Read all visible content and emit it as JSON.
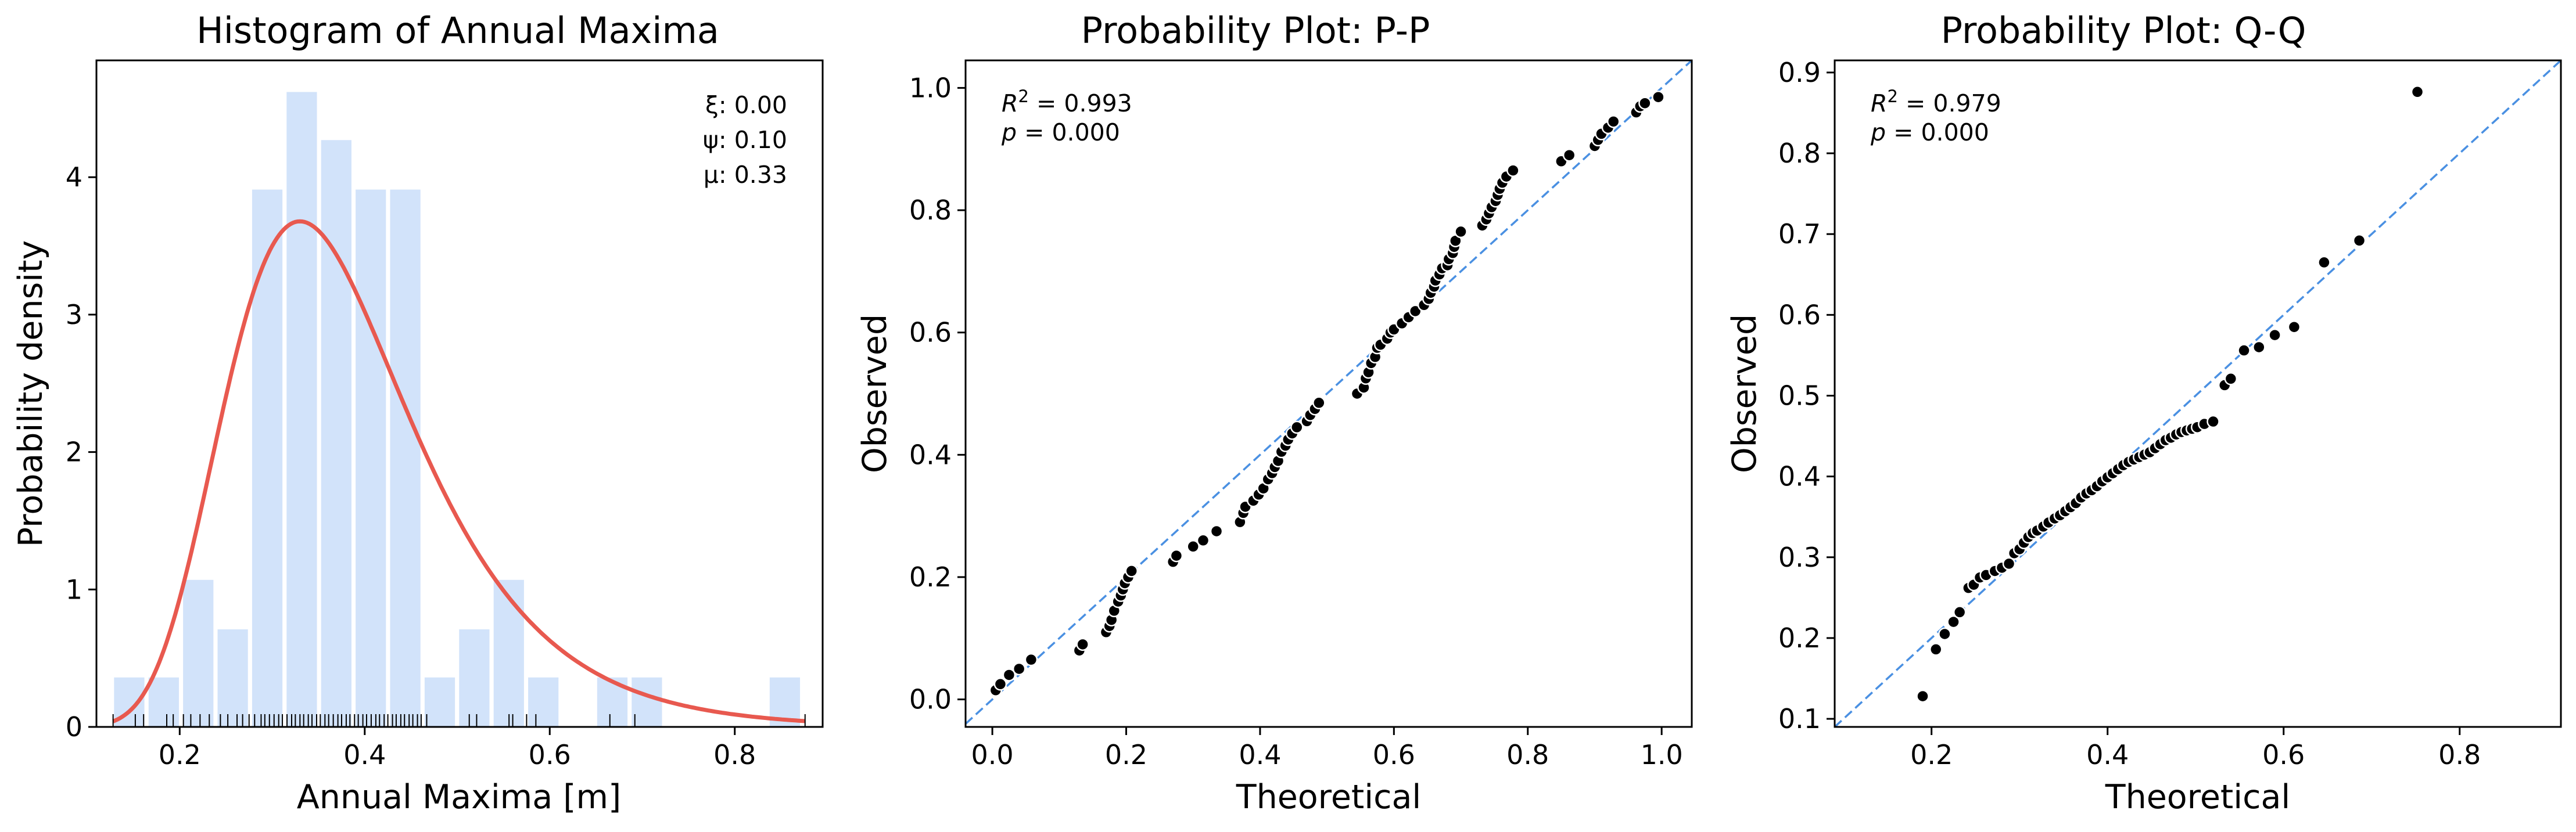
{
  "chart_data": [
    {
      "id": "hist",
      "type": "bar",
      "title": "Histogram of Annual Maxima",
      "xlabel": "Annual Maxima [m]",
      "ylabel": "Probability density",
      "xlim": [
        0.11,
        0.895
      ],
      "ylim": [
        0,
        4.85
      ],
      "xticks": [
        0.2,
        0.4,
        0.6,
        0.8
      ],
      "xtick_labels": [
        "0.2",
        "0.4",
        "0.6",
        "0.8"
      ],
      "yticks": [
        0,
        1,
        2,
        3,
        4
      ],
      "ytick_labels": [
        "0",
        "1",
        "2",
        "3",
        "4"
      ],
      "bin_width": 0.0373,
      "bin_starts": [
        0.1268,
        0.1641,
        0.2014,
        0.2387,
        0.276,
        0.3133,
        0.3506,
        0.3879,
        0.4252,
        0.4625,
        0.4998,
        0.5371,
        0.5744,
        0.6117,
        0.649,
        0.6863,
        0.7236,
        0.7609,
        0.7982,
        0.8355
      ],
      "values": [
        0.36,
        0.36,
        1.07,
        0.71,
        3.91,
        4.62,
        4.27,
        3.91,
        3.91,
        0.36,
        0.71,
        1.07,
        0.36,
        0,
        0.36,
        0.36,
        0,
        0,
        0,
        0.36
      ],
      "bar_color": "#d2e3fa",
      "pdf_color": "#e8594f",
      "gev_params": {
        "xi": 0.0,
        "psi": 0.1,
        "mu": 0.33
      },
      "param_labels": [
        "ξ: 0.00",
        "ψ: 0.10",
        "μ: 0.33"
      ],
      "rug": [
        0.128,
        0.152,
        0.161,
        0.186,
        0.193,
        0.204,
        0.212,
        0.222,
        0.232,
        0.244,
        0.252,
        0.262,
        0.268,
        0.275,
        0.281,
        0.288,
        0.292,
        0.297,
        0.302,
        0.307,
        0.311,
        0.316,
        0.321,
        0.325,
        0.33,
        0.334,
        0.339,
        0.343,
        0.348,
        0.352,
        0.357,
        0.361,
        0.366,
        0.371,
        0.375,
        0.38,
        0.384,
        0.389,
        0.393,
        0.398,
        0.402,
        0.407,
        0.412,
        0.416,
        0.421,
        0.425,
        0.43,
        0.434,
        0.439,
        0.443,
        0.448,
        0.452,
        0.457,
        0.461,
        0.467,
        0.513,
        0.521,
        0.556,
        0.56,
        0.575,
        0.585,
        0.665,
        0.692,
        0.876
      ]
    },
    {
      "id": "pp",
      "type": "scatter",
      "title": "Probability Plot: P-P",
      "xlabel": "Theoretical",
      "ylabel": "Observed",
      "xlim": [
        -0.04,
        1.045
      ],
      "ylim": [
        -0.045,
        1.045
      ],
      "xticks": [
        0.0,
        0.2,
        0.4,
        0.6,
        0.8,
        1.0
      ],
      "xtick_labels": [
        "0.0",
        "0.2",
        "0.4",
        "0.6",
        "0.8",
        "1.0"
      ],
      "yticks": [
        0.0,
        0.2,
        0.4,
        0.6,
        0.8,
        1.0
      ],
      "ytick_labels": [
        "0.0",
        "0.2",
        "0.4",
        "0.6",
        "0.8",
        "1.0"
      ],
      "stats": {
        "r2": "0.993",
        "p": "0.000"
      },
      "points": [
        [
          0.005,
          0.015
        ],
        [
          0.012,
          0.025
        ],
        [
          0.025,
          0.04
        ],
        [
          0.04,
          0.05
        ],
        [
          0.058,
          0.065
        ],
        [
          0.13,
          0.08
        ],
        [
          0.135,
          0.09
        ],
        [
          0.17,
          0.11
        ],
        [
          0.175,
          0.12
        ],
        [
          0.178,
          0.13
        ],
        [
          0.182,
          0.145
        ],
        [
          0.188,
          0.16
        ],
        [
          0.192,
          0.17
        ],
        [
          0.195,
          0.18
        ],
        [
          0.198,
          0.19
        ],
        [
          0.203,
          0.2
        ],
        [
          0.208,
          0.21
        ],
        [
          0.27,
          0.225
        ],
        [
          0.275,
          0.235
        ],
        [
          0.3,
          0.25
        ],
        [
          0.315,
          0.26
        ],
        [
          0.335,
          0.275
        ],
        [
          0.37,
          0.29
        ],
        [
          0.375,
          0.305
        ],
        [
          0.378,
          0.315
        ],
        [
          0.39,
          0.325
        ],
        [
          0.398,
          0.335
        ],
        [
          0.405,
          0.345
        ],
        [
          0.412,
          0.36
        ],
        [
          0.418,
          0.37
        ],
        [
          0.422,
          0.38
        ],
        [
          0.427,
          0.39
        ],
        [
          0.432,
          0.405
        ],
        [
          0.438,
          0.415
        ],
        [
          0.442,
          0.425
        ],
        [
          0.448,
          0.435
        ],
        [
          0.455,
          0.445
        ],
        [
          0.47,
          0.455
        ],
        [
          0.475,
          0.465
        ],
        [
          0.482,
          0.475
        ],
        [
          0.488,
          0.485
        ],
        [
          0.545,
          0.5
        ],
        [
          0.555,
          0.51
        ],
        [
          0.558,
          0.525
        ],
        [
          0.562,
          0.535
        ],
        [
          0.566,
          0.55
        ],
        [
          0.572,
          0.56
        ],
        [
          0.575,
          0.575
        ],
        [
          0.58,
          0.58
        ],
        [
          0.59,
          0.59
        ],
        [
          0.595,
          0.6
        ],
        [
          0.6,
          0.605
        ],
        [
          0.612,
          0.615
        ],
        [
          0.622,
          0.625
        ],
        [
          0.632,
          0.635
        ],
        [
          0.645,
          0.645
        ],
        [
          0.652,
          0.655
        ],
        [
          0.655,
          0.665
        ],
        [
          0.66,
          0.675
        ],
        [
          0.662,
          0.685
        ],
        [
          0.668,
          0.695
        ],
        [
          0.672,
          0.705
        ],
        [
          0.68,
          0.71
        ],
        [
          0.682,
          0.72
        ],
        [
          0.688,
          0.73
        ],
        [
          0.69,
          0.74
        ],
        [
          0.692,
          0.75
        ],
        [
          0.7,
          0.765
        ],
        [
          0.732,
          0.775
        ],
        [
          0.738,
          0.785
        ],
        [
          0.742,
          0.795
        ],
        [
          0.746,
          0.805
        ],
        [
          0.752,
          0.815
        ],
        [
          0.755,
          0.825
        ],
        [
          0.758,
          0.835
        ],
        [
          0.762,
          0.845
        ],
        [
          0.768,
          0.855
        ],
        [
          0.778,
          0.865
        ],
        [
          0.85,
          0.88
        ],
        [
          0.862,
          0.89
        ],
        [
          0.9,
          0.905
        ],
        [
          0.905,
          0.915
        ],
        [
          0.91,
          0.925
        ],
        [
          0.92,
          0.935
        ],
        [
          0.928,
          0.945
        ],
        [
          0.962,
          0.96
        ],
        [
          0.968,
          0.97
        ],
        [
          0.975,
          0.975
        ],
        [
          0.995,
          0.985
        ]
      ],
      "point_color": "#000000",
      "line_color": "#4a90e2"
    },
    {
      "id": "qq",
      "type": "scatter",
      "title": "Probability Plot: Q-Q",
      "xlabel": "Theoretical",
      "ylabel": "Observed",
      "xlim": [
        0.09,
        0.915
      ],
      "ylim": [
        0.09,
        0.915
      ],
      "xticks": [
        0.2,
        0.4,
        0.6,
        0.8
      ],
      "xtick_labels": [
        "0.2",
        "0.4",
        "0.6",
        "0.8"
      ],
      "yticks": [
        0.1,
        0.2,
        0.3,
        0.4,
        0.5,
        0.6,
        0.7,
        0.8,
        0.9
      ],
      "ytick_labels": [
        "0.1",
        "0.2",
        "0.3",
        "0.4",
        "0.5",
        "0.6",
        "0.7",
        "0.8",
        "0.9"
      ],
      "stats": {
        "r2": "0.979",
        "p": "0.000"
      },
      "points": [
        [
          0.19,
          0.128
        ],
        [
          0.205,
          0.186
        ],
        [
          0.215,
          0.205
        ],
        [
          0.225,
          0.22
        ],
        [
          0.232,
          0.232
        ],
        [
          0.242,
          0.262
        ],
        [
          0.248,
          0.266
        ],
        [
          0.255,
          0.275
        ],
        [
          0.262,
          0.278
        ],
        [
          0.272,
          0.283
        ],
        [
          0.28,
          0.287
        ],
        [
          0.288,
          0.292
        ],
        [
          0.294,
          0.305
        ],
        [
          0.3,
          0.31
        ],
        [
          0.305,
          0.318
        ],
        [
          0.31,
          0.325
        ],
        [
          0.315,
          0.33
        ],
        [
          0.32,
          0.333
        ],
        [
          0.327,
          0.338
        ],
        [
          0.333,
          0.343
        ],
        [
          0.34,
          0.348
        ],
        [
          0.346,
          0.352
        ],
        [
          0.352,
          0.357
        ],
        [
          0.358,
          0.362
        ],
        [
          0.364,
          0.367
        ],
        [
          0.37,
          0.374
        ],
        [
          0.376,
          0.379
        ],
        [
          0.382,
          0.383
        ],
        [
          0.388,
          0.388
        ],
        [
          0.394,
          0.394
        ],
        [
          0.4,
          0.399
        ],
        [
          0.406,
          0.404
        ],
        [
          0.412,
          0.409
        ],
        [
          0.418,
          0.414
        ],
        [
          0.424,
          0.418
        ],
        [
          0.43,
          0.421
        ],
        [
          0.436,
          0.424
        ],
        [
          0.442,
          0.427
        ],
        [
          0.448,
          0.43
        ],
        [
          0.454,
          0.435
        ],
        [
          0.46,
          0.44
        ],
        [
          0.466,
          0.445
        ],
        [
          0.472,
          0.448
        ],
        [
          0.478,
          0.452
        ],
        [
          0.484,
          0.455
        ],
        [
          0.49,
          0.457
        ],
        [
          0.496,
          0.459
        ],
        [
          0.502,
          0.461
        ],
        [
          0.51,
          0.465
        ],
        [
          0.52,
          0.468
        ],
        [
          0.533,
          0.513
        ],
        [
          0.54,
          0.521
        ],
        [
          0.555,
          0.556
        ],
        [
          0.572,
          0.56
        ],
        [
          0.59,
          0.575
        ],
        [
          0.612,
          0.585
        ],
        [
          0.646,
          0.665
        ],
        [
          0.686,
          0.692
        ],
        [
          0.752,
          0.876
        ]
      ],
      "point_color": "#000000",
      "line_color": "#4a90e2"
    }
  ]
}
